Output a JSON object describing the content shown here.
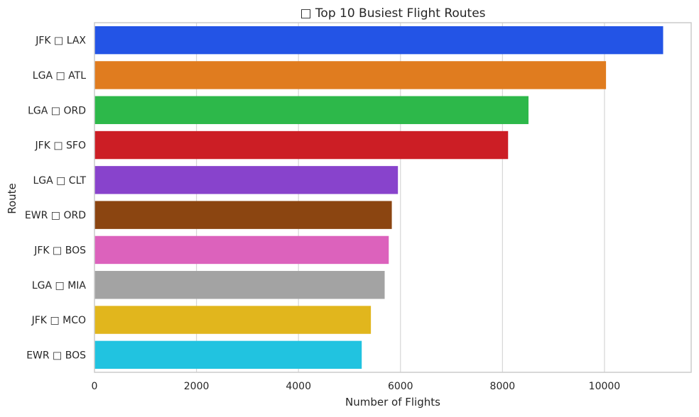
{
  "chart_data": {
    "type": "bar",
    "orientation": "horizontal",
    "title": "□ Top 10 Busiest Flight Routes",
    "xlabel": "Number of Flights",
    "ylabel": "Route",
    "xlim": [
      0,
      11700
    ],
    "xticks": [
      0,
      2000,
      4000,
      6000,
      8000,
      10000
    ],
    "grid": true,
    "categories": [
      "JFK □ LAX",
      "LGA □ ATL",
      "LGA □ ORD",
      "JFK □ SFO",
      "LGA □ CLT",
      "EWR □ ORD",
      "JFK □ BOS",
      "LGA □ MIA",
      "JFK □ MCO",
      "EWR □ BOS"
    ],
    "values": [
      11150,
      10030,
      8510,
      8110,
      5950,
      5830,
      5770,
      5690,
      5420,
      5240
    ],
    "colors": [
      "#2354e6",
      "#e07c1f",
      "#2db84a",
      "#cc1e25",
      "#8843cc",
      "#8b4511",
      "#dc62bc",
      "#a3a3a3",
      "#e1b61d",
      "#21c3e0"
    ]
  }
}
